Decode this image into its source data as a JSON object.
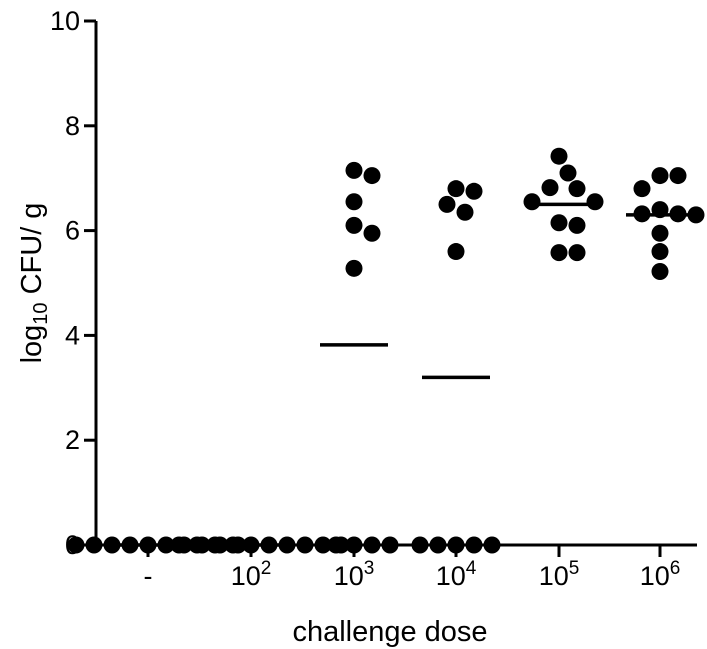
{
  "chart_data": {
    "type": "scatter",
    "title": "",
    "xlabel": "challenge dose",
    "ylabel_main": "log",
    "ylabel_sub": "10",
    "ylabel_rest": " CFU/ g",
    "ylim": [
      0,
      10
    ],
    "yticks": [
      "0",
      "2",
      "4",
      "6",
      "8",
      "10"
    ],
    "grid": false,
    "legend": "none",
    "marker_color": "#000000",
    "categories": [
      {
        "base": "-",
        "exp": ""
      },
      {
        "base": "10",
        "exp": "2"
      },
      {
        "base": "10",
        "exp": "3"
      },
      {
        "base": "10",
        "exp": "4"
      },
      {
        "base": "10",
        "exp": "5"
      },
      {
        "base": "10",
        "exp": "6"
      }
    ],
    "points": [
      [
        0,
        0,
        0,
        0,
        0,
        0,
        0,
        0,
        0,
        0
      ],
      [
        0,
        0,
        0,
        0,
        0,
        0,
        0,
        0,
        0,
        0
      ],
      [
        7.05,
        7.15,
        5.95,
        6.55,
        6.1,
        5.28,
        0,
        0,
        0,
        0
      ],
      [
        6.75,
        6.8,
        6.35,
        6.5,
        5.6,
        0,
        0,
        0,
        0,
        0
      ],
      [
        7.1,
        7.42,
        6.82,
        6.8,
        6.55,
        6.55,
        6.15,
        6.1,
        5.58,
        5.58
      ],
      [
        7.05,
        7.05,
        6.8,
        6.4,
        6.32,
        6.32,
        6.3,
        5.95,
        5.6,
        5.22
      ]
    ],
    "means": [
      0,
      0,
      3.82,
      3.2,
      6.5,
      6.3
    ]
  }
}
